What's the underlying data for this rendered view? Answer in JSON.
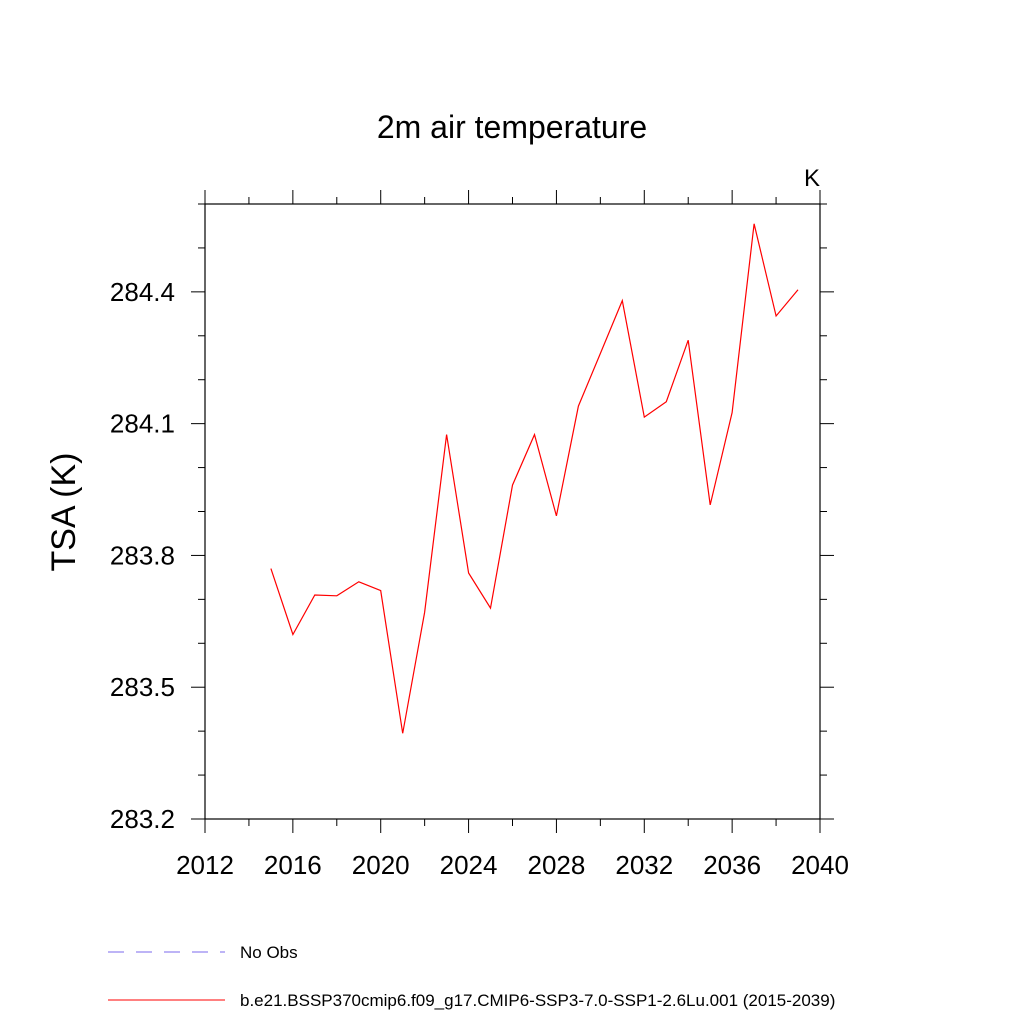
{
  "chart_data": {
    "type": "line",
    "title": "2m air temperature",
    "units_label": "K",
    "xlabel": "",
    "ylabel": "TSA  (K)",
    "xlim": [
      2012,
      2040
    ],
    "ylim": [
      283.2,
      284.6
    ],
    "x_ticks": [
      2012,
      2016,
      2020,
      2024,
      2028,
      2032,
      2036,
      2040
    ],
    "x_tick_labels": [
      "2012",
      "2016",
      "2020",
      "2024",
      "2028",
      "2032",
      "2036",
      "2040"
    ],
    "y_ticks": [
      283.2,
      283.5,
      283.8,
      284.1,
      284.4
    ],
    "y_tick_labels": [
      "283.2",
      "283.5",
      "283.8",
      "284.1",
      "284.4"
    ],
    "x_minor_step": 2,
    "y_minor_step": 0.1,
    "grid": false,
    "legend_position": "bottom",
    "series": [
      {
        "name": "b.e21.BSSP370cmip6.f09_g17.CMIP6-SSP3-7.0-SSP1-2.6Lu.001 (2015-2039)",
        "color": "#ff0000",
        "style": "solid",
        "x": [
          2015,
          2016,
          2017,
          2018,
          2019,
          2020,
          2021,
          2022,
          2023,
          2024,
          2025,
          2026,
          2027,
          2028,
          2029,
          2030,
          2031,
          2032,
          2033,
          2034,
          2035,
          2036,
          2037,
          2038,
          2039
        ],
        "y": [
          283.77,
          283.62,
          283.71,
          283.708,
          283.74,
          283.72,
          283.395,
          283.67,
          284.075,
          283.76,
          283.68,
          283.96,
          284.075,
          283.89,
          284.14,
          284.26,
          284.38,
          284.115,
          284.15,
          284.29,
          283.915,
          284.125,
          284.555,
          284.345,
          284.405
        ]
      }
    ],
    "legend": [
      {
        "label": "No Obs",
        "color": "#7b68ee",
        "style": "dashed"
      },
      {
        "label": "b.e21.BSSP370cmip6.f09_g17.CMIP6-SSP3-7.0-SSP1-2.6Lu.001 (2015-2039)",
        "color": "#ff0000",
        "style": "solid"
      }
    ]
  }
}
